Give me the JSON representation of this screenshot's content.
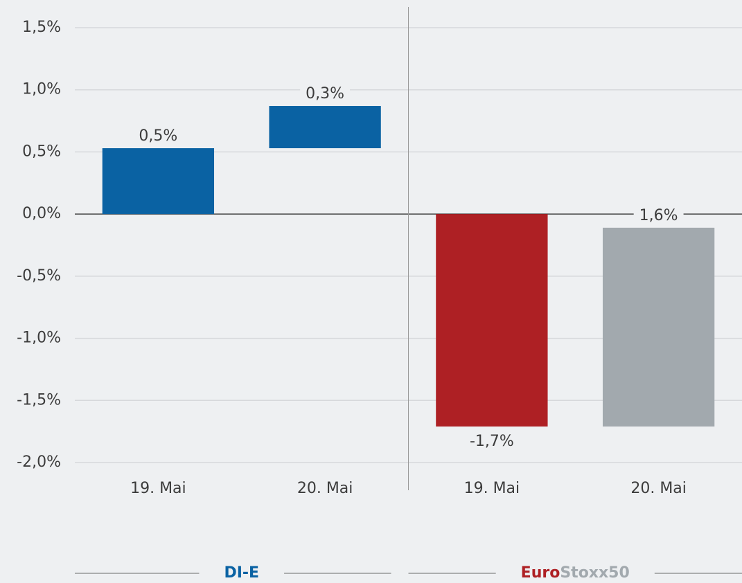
{
  "chart_data": {
    "type": "waterfall",
    "ylim": [
      -2.0,
      1.5
    ],
    "yticks": [
      {
        "value": 1.5,
        "label": "1,5%"
      },
      {
        "value": 1.0,
        "label": "1,0%"
      },
      {
        "value": 0.5,
        "label": "0,5%"
      },
      {
        "value": 0.0,
        "label": "0,0%"
      },
      {
        "value": -0.5,
        "label": "-0,5%"
      },
      {
        "value": -1.0,
        "label": "-1,0%"
      },
      {
        "value": -1.5,
        "label": "-1,5%"
      },
      {
        "value": -2.0,
        "label": "-2,0%"
      }
    ],
    "grid": true,
    "groups": [
      {
        "label_parts": [
          {
            "text": "DI-E",
            "color": "#0a62a3"
          }
        ],
        "categories": [
          "19. Mai",
          "20. Mai"
        ],
        "values": [
          0.53,
          0.34
        ],
        "value_labels": [
          "0,5%",
          "0,3%"
        ],
        "colors": [
          "#0a62a3",
          "#0a62a3"
        ]
      },
      {
        "label_parts": [
          {
            "text": "Euro",
            "color": "#ae2024"
          },
          {
            "text": "Stoxx50",
            "color": "#a2a9ae"
          }
        ],
        "categories": [
          "19. Mai",
          "20. Mai"
        ],
        "values": [
          -1.71,
          1.6
        ],
        "value_labels": [
          "-1,7%",
          "1,6%"
        ],
        "colors": [
          "#ae2024",
          "#a2a9ae"
        ]
      }
    ]
  }
}
